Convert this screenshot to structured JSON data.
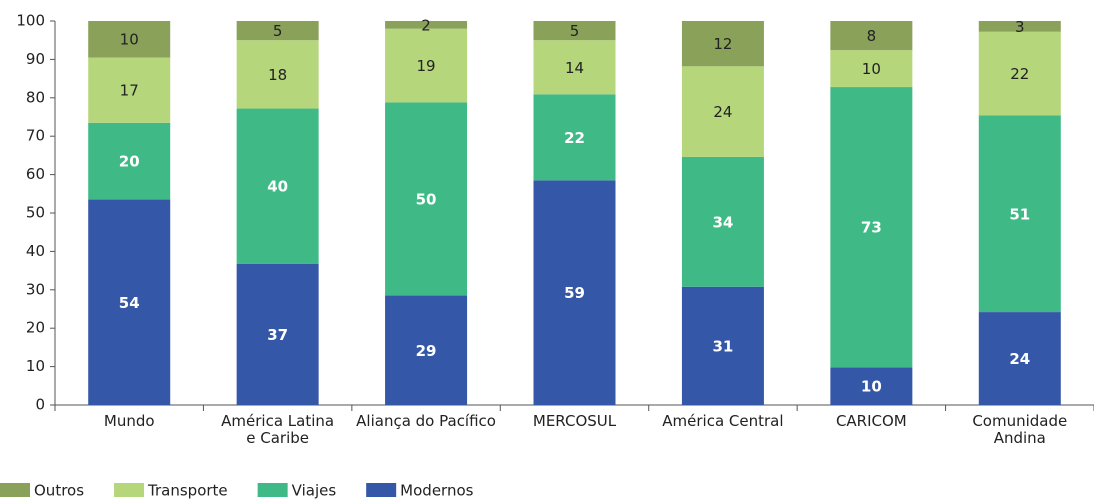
{
  "chart_data": {
    "type": "stacked_bar",
    "categories": [
      "Mundo",
      "América Latina\ne Caribe",
      "Aliança do Pacífico",
      "MERCOSUL",
      "América Central",
      "CARICOM",
      "Comunidade\nAndina"
    ],
    "series": [
      {
        "name": "Modernos",
        "color": "#3557a8",
        "label_color": "#ffffff",
        "values": [
          53.5,
          36.8,
          28.5,
          58.5,
          30.8,
          9.8,
          24.2
        ],
        "value_labels": [
          "54",
          "37",
          "29",
          "59",
          "31",
          "10",
          "24"
        ]
      },
      {
        "name": "Viajes",
        "color": "#3fba86",
        "label_color": "#ffffff",
        "values": [
          20,
          40.4,
          50.3,
          22.4,
          33.8,
          73.0,
          51.2
        ],
        "value_labels": [
          "20",
          "40",
          "50",
          "22",
          "34",
          "73",
          "51"
        ]
      },
      {
        "name": "Transporte",
        "color": "#b6d67c",
        "label_color": "#222222",
        "values": [
          17,
          17.8,
          19.2,
          14.1,
          23.6,
          9.6,
          21.8
        ],
        "value_labels": [
          "17",
          "18",
          "19",
          "14",
          "24",
          "10",
          "22"
        ]
      },
      {
        "name": "Outros",
        "color": "#8aa15a",
        "label_color": "#222222",
        "values": [
          9.5,
          5.0,
          2.0,
          5.0,
          11.8,
          7.6,
          2.8
        ],
        "value_labels": [
          "10",
          "5",
          "2",
          "5",
          "12",
          "8",
          "3"
        ]
      }
    ],
    "ylim": [
      0,
      100
    ],
    "yticks": [
      0,
      10,
      20,
      30,
      40,
      50,
      60,
      70,
      80,
      90,
      100
    ],
    "legend": "bottom-left",
    "legend_order": [
      3,
      2,
      1,
      0
    ]
  }
}
